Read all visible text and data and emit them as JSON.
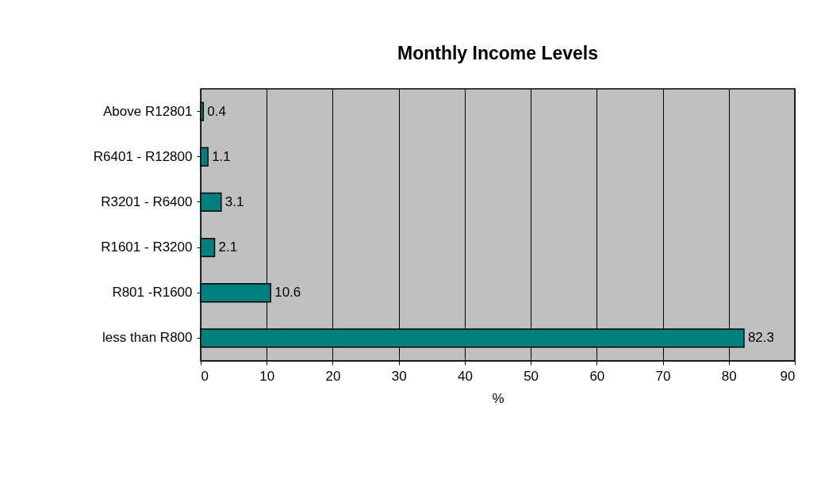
{
  "chart_data": {
    "type": "bar",
    "orientation": "horizontal",
    "title": "Monthly Income Levels",
    "xlabel": "%",
    "categories": [
      "Above R12801",
      "R6401 - R12800",
      "R3201 - R6400",
      "R1601 - R3200",
      "R801 -R1600",
      "less than R800"
    ],
    "values": [
      0.4,
      1.1,
      3.1,
      2.1,
      10.6,
      82.3
    ],
    "color": "#008080",
    "xlim": [
      0,
      90
    ],
    "xticks": [
      0,
      10,
      20,
      30,
      40,
      50,
      60,
      70,
      80,
      90
    ],
    "grid": "x",
    "data_labels": true
  }
}
